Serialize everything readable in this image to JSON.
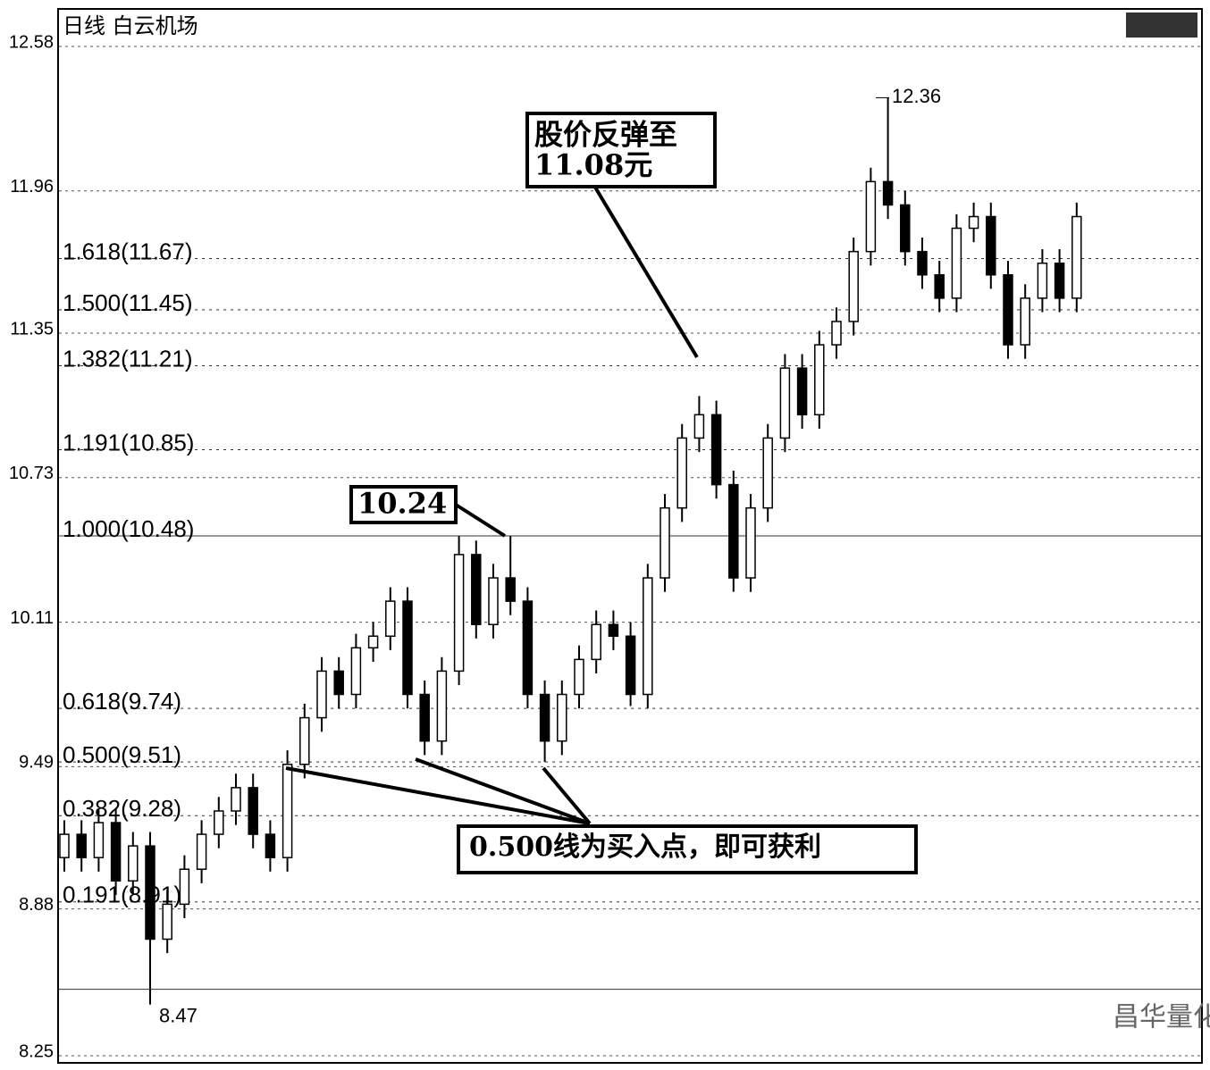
{
  "chart_data": {
    "type": "candlestick",
    "title": "日线 白云机场",
    "open": [
      9.1,
      9.2,
      9.1,
      9.25,
      9.0,
      9.15,
      8.75,
      8.9,
      9.05,
      9.2,
      9.3,
      9.4,
      9.2,
      9.1,
      9.5,
      9.7,
      9.9,
      9.8,
      10.0,
      10.05,
      10.2,
      9.8,
      9.6,
      9.9,
      10.4,
      10.1,
      10.3,
      10.2,
      9.8,
      9.6,
      9.8,
      9.95,
      10.1,
      10.05,
      9.8,
      10.3,
      10.6,
      10.9,
      11.0,
      10.7,
      10.3,
      10.6,
      10.9,
      11.2,
      11.0,
      11.3,
      11.4,
      11.7,
      12.0,
      11.9,
      11.7,
      11.6,
      11.5,
      11.8,
      11.85,
      11.6,
      11.3,
      11.5,
      11.65,
      11.5
    ],
    "high": [
      9.26,
      9.26,
      9.31,
      9.31,
      9.21,
      9.21,
      8.96,
      9.11,
      9.26,
      9.36,
      9.46,
      9.46,
      9.26,
      9.56,
      9.76,
      9.96,
      9.96,
      10.06,
      10.11,
      10.26,
      10.26,
      9.86,
      9.96,
      10.48,
      10.46,
      10.36,
      10.48,
      10.26,
      9.86,
      9.86,
      10.01,
      10.16,
      10.16,
      10.11,
      10.36,
      10.66,
      10.96,
      11.08,
      11.06,
      10.76,
      10.66,
      10.96,
      11.26,
      11.26,
      11.36,
      11.46,
      11.76,
      12.06,
      12.36,
      11.96,
      11.76,
      11.66,
      11.86,
      11.91,
      11.91,
      11.66,
      11.56,
      11.71,
      11.71,
      11.91
    ],
    "low": [
      9.04,
      9.04,
      9.04,
      8.94,
      8.94,
      8.47,
      8.69,
      8.84,
      8.99,
      9.14,
      9.24,
      9.14,
      9.04,
      9.04,
      9.44,
      9.64,
      9.74,
      9.74,
      9.94,
      9.99,
      9.74,
      9.54,
      9.54,
      9.84,
      10.04,
      10.04,
      10.14,
      9.74,
      9.51,
      9.54,
      9.74,
      9.89,
      9.99,
      9.75,
      9.74,
      10.24,
      10.54,
      10.84,
      10.64,
      10.24,
      10.24,
      10.54,
      10.84,
      10.94,
      10.94,
      11.24,
      11.34,
      11.64,
      11.84,
      11.64,
      11.54,
      11.44,
      11.44,
      11.74,
      11.54,
      11.24,
      11.24,
      11.44,
      11.44,
      11.44
    ],
    "close": [
      9.2,
      9.1,
      9.25,
      9.0,
      9.15,
      8.75,
      8.9,
      9.05,
      9.2,
      9.3,
      9.4,
      9.2,
      9.1,
      9.5,
      9.7,
      9.9,
      9.8,
      10.0,
      10.05,
      10.2,
      9.8,
      9.6,
      9.9,
      10.4,
      10.1,
      10.3,
      10.2,
      9.8,
      9.6,
      9.8,
      9.95,
      10.1,
      10.05,
      9.8,
      10.3,
      10.6,
      10.9,
      11.0,
      10.7,
      10.3,
      10.6,
      10.9,
      11.2,
      11.0,
      11.3,
      11.4,
      11.7,
      12.0,
      11.9,
      11.7,
      11.6,
      11.5,
      11.8,
      11.85,
      11.6,
      11.3,
      11.5,
      11.65,
      11.5,
      11.85
    ],
    "up_color": "#ffffff",
    "down_color": "#000000",
    "ylim": [
      8.25,
      12.58
    ],
    "yticks": [
      8.25,
      8.88,
      9.49,
      10.11,
      10.73,
      11.35,
      11.96,
      12.58
    ],
    "grid": true,
    "fib_levels": [
      {
        "value": 8.91,
        "label": "0.191(8.91)"
      },
      {
        "value": 9.28,
        "label": "0.382(9.28)"
      },
      {
        "value": 9.51,
        "label": "0.500(9.51)"
      },
      {
        "value": 9.74,
        "label": "0.618(9.74)"
      },
      {
        "value": 10.48,
        "label": "1.000(10.48)"
      },
      {
        "value": 10.85,
        "label": "1.191(10.85)"
      },
      {
        "value": 11.21,
        "label": "1.382(11.21)"
      },
      {
        "value": 11.45,
        "label": "1.500(11.45)"
      },
      {
        "value": 11.67,
        "label": "1.618(11.67)"
      }
    ],
    "high_label": 12.36,
    "low_label": 8.47,
    "annotations": {
      "peak_box": 10.24,
      "rebound_box": [
        "股价反弹至",
        "11.08元"
      ],
      "buy_box": "0.500线为买入点，即可获利"
    },
    "watermark": "昌华量化"
  }
}
